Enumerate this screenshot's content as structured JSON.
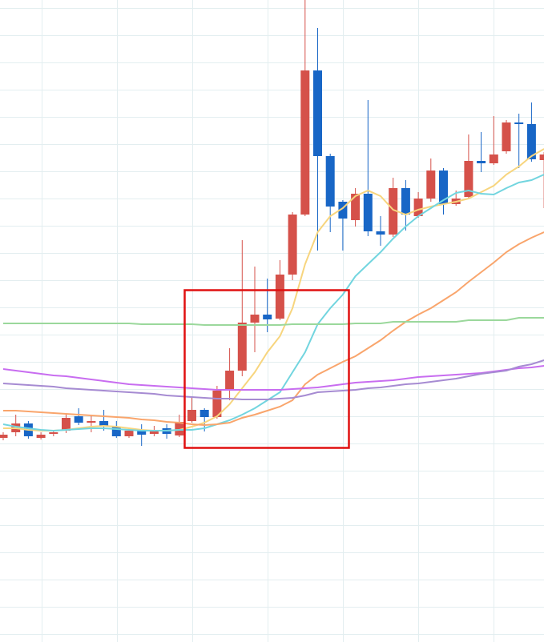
{
  "chart_data": {
    "type": "candlestick",
    "categories": [
      null,
      null,
      null,
      null,
      null,
      null,
      null,
      null,
      null,
      null,
      null,
      null,
      null,
      null,
      null,
      null,
      null,
      null,
      null,
      null,
      null,
      null,
      null,
      null,
      null,
      null,
      null,
      null,
      null,
      null,
      null,
      null,
      null,
      null,
      null,
      null,
      null,
      null,
      null,
      null,
      null,
      null,
      null,
      null
    ],
    "open": [
      255,
      262,
      273,
      255,
      260,
      264,
      282,
      274,
      276,
      269,
      257,
      264,
      260,
      267,
      258,
      276,
      290,
      281,
      314,
      339,
      399,
      409,
      404,
      459,
      534,
      714,
      607,
      550,
      527,
      560,
      513,
      509,
      567,
      532,
      554,
      589,
      547,
      556,
      601,
      598,
      613,
      649,
      647,
      602
    ],
    "high": [
      262,
      284,
      276,
      262,
      265,
      284,
      292,
      284,
      290,
      276,
      267,
      272,
      270,
      272,
      284,
      306,
      292,
      320,
      367,
      502,
      469,
      454,
      477,
      537,
      802,
      767,
      610,
      552,
      567,
      677,
      532,
      580,
      577,
      562,
      604,
      592,
      564,
      634,
      637,
      657,
      652,
      660,
      674,
      612
    ],
    "low": [
      252,
      257,
      254,
      253,
      257,
      261,
      271,
      262,
      264,
      255,
      255,
      245,
      257,
      254,
      256,
      274,
      263,
      279,
      302,
      332,
      362,
      387,
      402,
      452,
      532,
      489,
      512,
      489,
      519,
      507,
      495,
      506,
      514,
      530,
      550,
      534,
      545,
      554,
      587,
      596,
      610,
      592,
      600,
      542
    ],
    "close": [
      259,
      273,
      257,
      259,
      262,
      280,
      274,
      276,
      270,
      257,
      264,
      259,
      264,
      260,
      275,
      290,
      281,
      314,
      339,
      399,
      409,
      403,
      459,
      534,
      714,
      607,
      544,
      529,
      560,
      513,
      509,
      567,
      534,
      554,
      589,
      547,
      554,
      601,
      598,
      609,
      649,
      647,
      603,
      609
    ],
    "up_color": "#d5514a",
    "down_color": "#1866c6",
    "overlays": [
      {
        "color": "#f7d57e",
        "values": [
          267,
          267,
          265,
          264,
          264,
          265,
          267,
          269,
          270,
          269,
          267,
          265,
          264,
          264,
          265,
          269,
          274,
          282,
          297,
          317,
          337,
          362,
          382,
          417,
          472,
          512,
          532,
          542,
          557,
          564,
          557,
          540,
          534,
          540,
          544,
          547,
          550,
          554,
          562,
          570,
          584,
          594,
          607,
          616
        ]
      },
      {
        "color": "#72d5df",
        "values": [
          272,
          269,
          267,
          265,
          264,
          265,
          266,
          267,
          267,
          266,
          265,
          264,
          264,
          264,
          265,
          265,
          267,
          272,
          277,
          284,
          292,
          302,
          312,
          337,
          362,
          397,
          417,
          434,
          457,
          472,
          487,
          504,
          519,
          532,
          542,
          552,
          561,
          564,
          560,
          559,
          567,
          574,
          577,
          584
        ]
      },
      {
        "color": "#f9a56c",
        "values": [
          289,
          289,
          288,
          287,
          286,
          285,
          284,
          283,
          282,
          281,
          280,
          278,
          277,
          275,
          274,
          272,
          271,
          272,
          274,
          280,
          284,
          289,
          294,
          302,
          322,
          334,
          342,
          350,
          357,
          367,
          377,
          389,
          400,
          409,
          417,
          427,
          437,
          450,
          462,
          474,
          487,
          497,
          505,
          512
        ]
      },
      {
        "color": "#9bd89c",
        "values": [
          398,
          398,
          398,
          398,
          398,
          398,
          398,
          398,
          398,
          398,
          398,
          397,
          397,
          397,
          397,
          397,
          396,
          396,
          396,
          396,
          396,
          396,
          396,
          397,
          397,
          397,
          397,
          397,
          398,
          398,
          398,
          400,
          400,
          400,
          400,
          400,
          400,
          402,
          402,
          402,
          402,
          405,
          405,
          405
        ]
      },
      {
        "color": "#c86df0",
        "values": [
          341,
          339,
          337,
          335,
          333,
          332,
          330,
          328,
          326,
          324,
          322,
          321,
          320,
          319,
          318,
          317,
          316,
          315,
          315,
          315,
          315,
          315,
          315,
          316,
          317,
          318,
          320,
          322,
          324,
          325,
          326,
          327,
          329,
          331,
          332,
          333,
          334,
          335,
          336,
          338,
          340,
          342,
          343,
          345
        ]
      },
      {
        "color": "#a68bd2",
        "values": [
          323,
          322,
          321,
          320,
          319,
          317,
          316,
          315,
          314,
          313,
          312,
          311,
          310,
          308,
          307,
          306,
          305,
          304,
          304,
          303,
          303,
          303,
          304,
          305,
          308,
          312,
          313,
          314,
          315,
          317,
          318,
          320,
          322,
          323,
          325,
          327,
          329,
          332,
          335,
          337,
          339,
          344,
          347,
          352
        ]
      }
    ],
    "ylim": [
      0,
      802
    ],
    "yticks": [
      10,
      44,
      78,
      112,
      146,
      180,
      214,
      248,
      282,
      316,
      350,
      384,
      418,
      452,
      486,
      520,
      554,
      588,
      622,
      656,
      690,
      724,
      758,
      792
    ],
    "grid": true
  }
}
